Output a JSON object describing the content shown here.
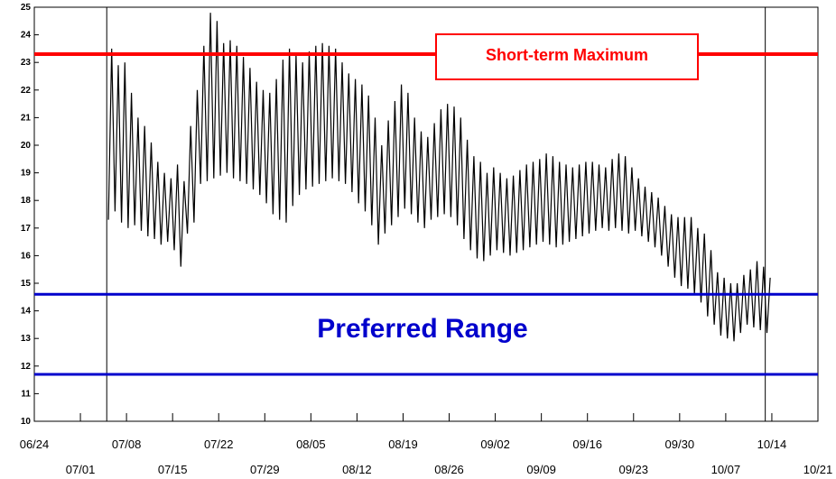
{
  "chart_data": {
    "type": "line",
    "xlim": [
      "06/24",
      "10/21"
    ],
    "ylim": [
      10,
      25
    ],
    "y_ticks": [
      10,
      11,
      12,
      13,
      14,
      15,
      16,
      17,
      18,
      19,
      20,
      21,
      22,
      23,
      24,
      25
    ],
    "x_ticks_upper": [
      "06/24",
      "07/08",
      "07/22",
      "08/05",
      "08/19",
      "09/02",
      "09/16",
      "09/30",
      "10/14"
    ],
    "x_ticks_lower": [
      "07/01",
      "07/15",
      "07/29",
      "08/12",
      "08/26",
      "09/09",
      "09/23",
      "10/07",
      "10/21"
    ],
    "grid": false,
    "record_start": "07/05",
    "record_end": "10/13",
    "daily_series": [
      {
        "min": 17.3,
        "max": 23.5
      },
      {
        "min": 17.6,
        "max": 22.9
      },
      {
        "min": 17.2,
        "max": 23.0
      },
      {
        "min": 17.0,
        "max": 21.9
      },
      {
        "min": 17.1,
        "max": 21.0
      },
      {
        "min": 16.9,
        "max": 20.7
      },
      {
        "min": 16.7,
        "max": 20.1
      },
      {
        "min": 16.6,
        "max": 19.4
      },
      {
        "min": 16.4,
        "max": 19.0
      },
      {
        "min": 16.5,
        "max": 18.8
      },
      {
        "min": 16.2,
        "max": 19.3
      },
      {
        "min": 15.6,
        "max": 18.7
      },
      {
        "min": 16.8,
        "max": 20.7
      },
      {
        "min": 17.2,
        "max": 22.0
      },
      {
        "min": 18.6,
        "max": 23.6
      },
      {
        "min": 18.7,
        "max": 24.8
      },
      {
        "min": 18.8,
        "max": 24.5
      },
      {
        "min": 18.9,
        "max": 23.7
      },
      {
        "min": 19.0,
        "max": 23.8
      },
      {
        "min": 18.8,
        "max": 23.6
      },
      {
        "min": 18.7,
        "max": 23.2
      },
      {
        "min": 18.6,
        "max": 22.8
      },
      {
        "min": 18.4,
        "max": 22.3
      },
      {
        "min": 18.2,
        "max": 22.0
      },
      {
        "min": 17.9,
        "max": 21.9
      },
      {
        "min": 17.5,
        "max": 22.4
      },
      {
        "min": 17.3,
        "max": 23.1
      },
      {
        "min": 17.2,
        "max": 23.5
      },
      {
        "min": 17.8,
        "max": 23.3
      },
      {
        "min": 18.2,
        "max": 23.0
      },
      {
        "min": 18.4,
        "max": 23.4
      },
      {
        "min": 18.5,
        "max": 23.6
      },
      {
        "min": 18.6,
        "max": 23.7
      },
      {
        "min": 18.7,
        "max": 23.6
      },
      {
        "min": 18.8,
        "max": 23.5
      },
      {
        "min": 18.7,
        "max": 23.0
      },
      {
        "min": 18.6,
        "max": 22.6
      },
      {
        "min": 18.3,
        "max": 22.4
      },
      {
        "min": 17.9,
        "max": 22.2
      },
      {
        "min": 17.6,
        "max": 21.8
      },
      {
        "min": 17.1,
        "max": 21.0
      },
      {
        "min": 16.4,
        "max": 20.0
      },
      {
        "min": 16.8,
        "max": 20.9
      },
      {
        "min": 17.1,
        "max": 21.6
      },
      {
        "min": 17.4,
        "max": 22.2
      },
      {
        "min": 17.7,
        "max": 21.9
      },
      {
        "min": 17.5,
        "max": 21.0
      },
      {
        "min": 17.2,
        "max": 20.5
      },
      {
        "min": 17.0,
        "max": 20.3
      },
      {
        "min": 17.3,
        "max": 20.8
      },
      {
        "min": 17.4,
        "max": 21.3
      },
      {
        "min": 17.5,
        "max": 21.5
      },
      {
        "min": 17.4,
        "max": 21.4
      },
      {
        "min": 17.1,
        "max": 21.0
      },
      {
        "min": 16.6,
        "max": 20.2
      },
      {
        "min": 16.2,
        "max": 19.6
      },
      {
        "min": 15.9,
        "max": 19.4
      },
      {
        "min": 15.8,
        "max": 19.0
      },
      {
        "min": 16.0,
        "max": 19.2
      },
      {
        "min": 16.2,
        "max": 19.0
      },
      {
        "min": 16.1,
        "max": 18.8
      },
      {
        "min": 16.0,
        "max": 18.9
      },
      {
        "min": 16.1,
        "max": 19.1
      },
      {
        "min": 16.2,
        "max": 19.3
      },
      {
        "min": 16.3,
        "max": 19.4
      },
      {
        "min": 16.4,
        "max": 19.5
      },
      {
        "min": 16.5,
        "max": 19.7
      },
      {
        "min": 16.4,
        "max": 19.6
      },
      {
        "min": 16.3,
        "max": 19.4
      },
      {
        "min": 16.4,
        "max": 19.3
      },
      {
        "min": 16.5,
        "max": 19.2
      },
      {
        "min": 16.6,
        "max": 19.3
      },
      {
        "min": 16.7,
        "max": 19.4
      },
      {
        "min": 16.8,
        "max": 19.4
      },
      {
        "min": 16.9,
        "max": 19.3
      },
      {
        "min": 17.0,
        "max": 19.2
      },
      {
        "min": 16.9,
        "max": 19.5
      },
      {
        "min": 17.0,
        "max": 19.7
      },
      {
        "min": 16.9,
        "max": 19.6
      },
      {
        "min": 16.8,
        "max": 19.2
      },
      {
        "min": 16.9,
        "max": 18.8
      },
      {
        "min": 16.7,
        "max": 18.5
      },
      {
        "min": 16.5,
        "max": 18.3
      },
      {
        "min": 16.3,
        "max": 18.1
      },
      {
        "min": 16.0,
        "max": 17.8
      },
      {
        "min": 15.6,
        "max": 17.5
      },
      {
        "min": 15.2,
        "max": 17.4
      },
      {
        "min": 14.9,
        "max": 17.4
      },
      {
        "min": 14.8,
        "max": 17.4
      },
      {
        "min": 14.6,
        "max": 17.0
      },
      {
        "min": 14.3,
        "max": 16.8
      },
      {
        "min": 13.8,
        "max": 16.2
      },
      {
        "min": 13.5,
        "max": 15.4
      },
      {
        "min": 13.1,
        "max": 15.2
      },
      {
        "min": 13.0,
        "max": 15.0
      },
      {
        "min": 12.9,
        "max": 15.0
      },
      {
        "min": 13.2,
        "max": 15.3
      },
      {
        "min": 13.5,
        "max": 15.5
      },
      {
        "min": 13.4,
        "max": 15.8
      },
      {
        "min": 13.3,
        "max": 15.6
      },
      {
        "min": 13.2,
        "max": 15.2
      }
    ],
    "reference_lines": [
      {
        "name": "Short-term Maximum",
        "y": 23.3,
        "color": "#ff0000"
      },
      {
        "name": "Preferred Range (upper)",
        "y": 14.6,
        "color": "#0000cc"
      },
      {
        "name": "Preferred Range (lower)",
        "y": 11.7,
        "color": "#0000cc"
      }
    ]
  },
  "annotations": {
    "short_term_maximum": "Short-term Maximum",
    "preferred_range": "Preferred Range"
  },
  "colors": {
    "series": "#000000",
    "max_line": "#ff0000",
    "range_line": "#0000cc",
    "background": "#ffffff"
  }
}
